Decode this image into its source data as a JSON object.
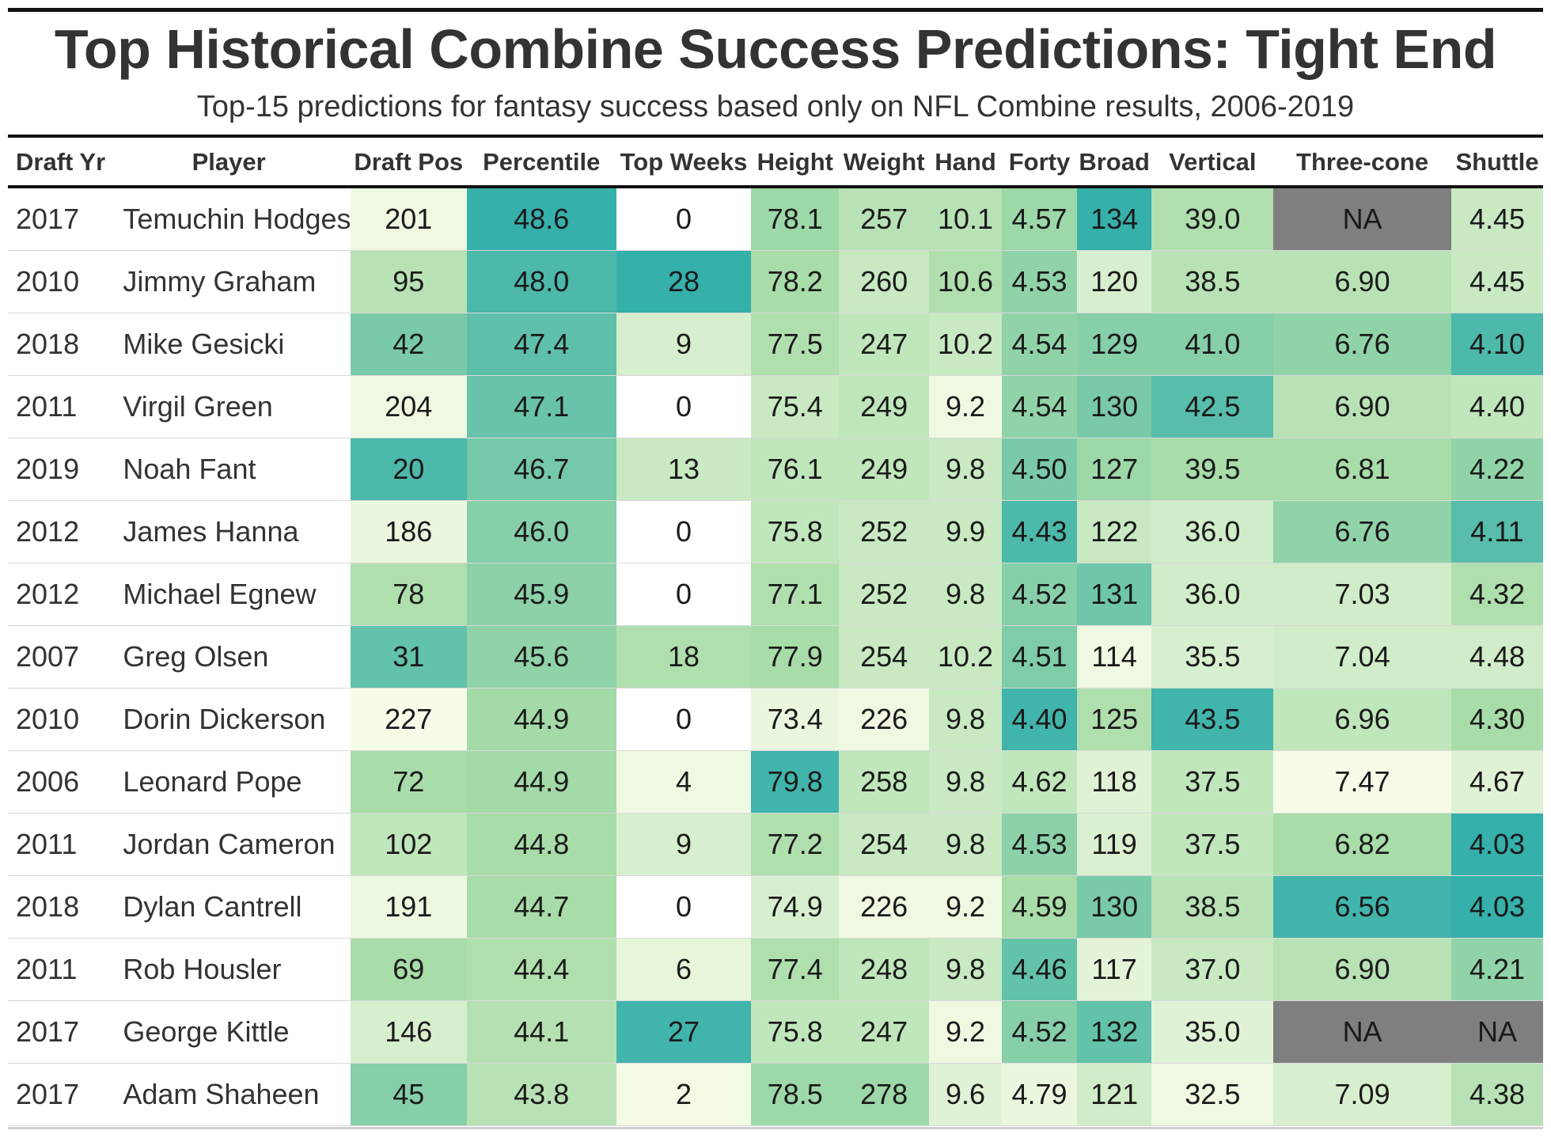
{
  "chart_data": {
    "type": "table",
    "title": "Top Historical Combine Success Predictions: Tight End",
    "subtitle": "Top-15 predictions for fantasy success based only on NFL Combine results, 2006-2019",
    "columns": [
      "Draft Yr",
      "Player",
      "Draft Pos",
      "Percentile",
      "Top Weeks",
      "Height",
      "Weight",
      "Hand",
      "Forty",
      "Broad",
      "Vertical",
      "Three-cone",
      "Shuttle"
    ],
    "color_scale": {
      "low": "#f7fce8",
      "mid": "#a8dca8",
      "high": "#35b0ab",
      "na": "#7f7f7f",
      "none": "#ffffff"
    },
    "rows": [
      {
        "year": "2017",
        "player": "Temuchin Hodges",
        "cells": [
          [
            "201",
            0.05
          ],
          [
            "48.6",
            1.0
          ],
          [
            "0",
            0
          ],
          [
            "78.1",
            0.55
          ],
          [
            "257",
            0.4
          ],
          [
            "10.1",
            0.4
          ],
          [
            "4.57",
            0.55
          ],
          [
            "134",
            1.0
          ],
          [
            "39.0",
            0.45
          ],
          [
            "NA",
            "na"
          ],
          [
            "4.45",
            0.3
          ]
        ]
      },
      {
        "year": "2010",
        "player": "Jimmy Graham",
        "cells": [
          [
            "95",
            0.4
          ],
          [
            "48.0",
            0.9
          ],
          [
            "28",
            1.0
          ],
          [
            "78.2",
            0.5
          ],
          [
            "260",
            0.3
          ],
          [
            "10.6",
            0.45
          ],
          [
            "4.53",
            0.6
          ],
          [
            "120",
            0.2
          ],
          [
            "38.5",
            0.4
          ],
          [
            "6.90",
            0.4
          ],
          [
            "4.45",
            0.3
          ]
        ]
      },
      {
        "year": "2018",
        "player": "Mike Gesicki",
        "cells": [
          [
            "42",
            0.7
          ],
          [
            "47.4",
            0.82
          ],
          [
            "9",
            0.2
          ],
          [
            "77.5",
            0.45
          ],
          [
            "247",
            0.35
          ],
          [
            "10.2",
            0.3
          ],
          [
            "4.54",
            0.6
          ],
          [
            "129",
            0.65
          ],
          [
            "41.0",
            0.65
          ],
          [
            "6.76",
            0.6
          ],
          [
            "4.10",
            0.9
          ]
        ]
      },
      {
        "year": "2011",
        "player": "Virgil Green",
        "cells": [
          [
            "204",
            0.05
          ],
          [
            "47.1",
            0.78
          ],
          [
            "0",
            0
          ],
          [
            "75.4",
            0.3
          ],
          [
            "249",
            0.35
          ],
          [
            "9.2",
            0.05
          ],
          [
            "4.54",
            0.6
          ],
          [
            "130",
            0.7
          ],
          [
            "42.5",
            0.85
          ],
          [
            "6.90",
            0.4
          ],
          [
            "4.40",
            0.35
          ]
        ]
      },
      {
        "year": "2019",
        "player": "Noah Fant",
        "cells": [
          [
            "20",
            0.9
          ],
          [
            "46.7",
            0.72
          ],
          [
            "13",
            0.3
          ],
          [
            "76.1",
            0.35
          ],
          [
            "249",
            0.35
          ],
          [
            "9.8",
            0.3
          ],
          [
            "4.50",
            0.7
          ],
          [
            "127",
            0.55
          ],
          [
            "39.5",
            0.5
          ],
          [
            "6.81",
            0.5
          ],
          [
            "4.22",
            0.6
          ]
        ]
      },
      {
        "year": "2012",
        "player": "James Hanna",
        "cells": [
          [
            "186",
            0.08
          ],
          [
            "46.0",
            0.65
          ],
          [
            "0",
            0
          ],
          [
            "75.8",
            0.35
          ],
          [
            "252",
            0.3
          ],
          [
            "9.9",
            0.3
          ],
          [
            "4.43",
            0.9
          ],
          [
            "122",
            0.3
          ],
          [
            "36.0",
            0.25
          ],
          [
            "6.76",
            0.6
          ],
          [
            "4.11",
            0.85
          ]
        ]
      },
      {
        "year": "2012",
        "player": "Michael Egnew",
        "cells": [
          [
            "78",
            0.45
          ],
          [
            "45.9",
            0.62
          ],
          [
            "0",
            0
          ],
          [
            "77.1",
            0.45
          ],
          [
            "252",
            0.3
          ],
          [
            "9.8",
            0.3
          ],
          [
            "4.52",
            0.65
          ],
          [
            "131",
            0.75
          ],
          [
            "36.0",
            0.25
          ],
          [
            "7.03",
            0.25
          ],
          [
            "4.32",
            0.45
          ]
        ]
      },
      {
        "year": "2007",
        "player": "Greg Olsen",
        "cells": [
          [
            "31",
            0.8
          ],
          [
            "45.6",
            0.6
          ],
          [
            "18",
            0.45
          ],
          [
            "77.9",
            0.5
          ],
          [
            "254",
            0.3
          ],
          [
            "10.2",
            0.3
          ],
          [
            "4.51",
            0.68
          ],
          [
            "114",
            0.05
          ],
          [
            "35.5",
            0.2
          ],
          [
            "7.04",
            0.25
          ],
          [
            "4.48",
            0.25
          ]
        ]
      },
      {
        "year": "2010",
        "player": "Dorin Dickerson",
        "cells": [
          [
            "227",
            0.0
          ],
          [
            "44.9",
            0.52
          ],
          [
            "0",
            0
          ],
          [
            "73.4",
            0.08
          ],
          [
            "226",
            0.05
          ],
          [
            "9.8",
            0.3
          ],
          [
            "4.40",
            0.95
          ],
          [
            "125",
            0.45
          ],
          [
            "43.5",
            0.95
          ],
          [
            "6.96",
            0.35
          ],
          [
            "4.30",
            0.5
          ]
        ]
      },
      {
        "year": "2006",
        "player": "Leonard Pope",
        "cells": [
          [
            "72",
            0.5
          ],
          [
            "44.9",
            0.52
          ],
          [
            "4",
            0.05
          ],
          [
            "79.8",
            0.95
          ],
          [
            "258",
            0.35
          ],
          [
            "9.8",
            0.3
          ],
          [
            "4.62",
            0.35
          ],
          [
            "118",
            0.15
          ],
          [
            "37.5",
            0.35
          ],
          [
            "7.47",
            0.0
          ],
          [
            "4.67",
            0.15
          ]
        ]
      },
      {
        "year": "2011",
        "player": "Jordan Cameron",
        "cells": [
          [
            "102",
            0.35
          ],
          [
            "44.8",
            0.5
          ],
          [
            "9",
            0.2
          ],
          [
            "77.2",
            0.45
          ],
          [
            "254",
            0.3
          ],
          [
            "9.8",
            0.3
          ],
          [
            "4.53",
            0.62
          ],
          [
            "119",
            0.18
          ],
          [
            "37.5",
            0.35
          ],
          [
            "6.82",
            0.5
          ],
          [
            "4.03",
            1.0
          ]
        ]
      },
      {
        "year": "2018",
        "player": "Dylan Cantrell",
        "cells": [
          [
            "191",
            0.07
          ],
          [
            "44.7",
            0.5
          ],
          [
            "0",
            0
          ],
          [
            "74.9",
            0.2
          ],
          [
            "226",
            0.05
          ],
          [
            "9.2",
            0.05
          ],
          [
            "4.59",
            0.5
          ],
          [
            "130",
            0.7
          ],
          [
            "38.5",
            0.4
          ],
          [
            "6.56",
            0.95
          ],
          [
            "4.03",
            1.0
          ]
        ]
      },
      {
        "year": "2011",
        "player": "Rob Housler",
        "cells": [
          [
            "69",
            0.5
          ],
          [
            "44.4",
            0.45
          ],
          [
            "6",
            0.1
          ],
          [
            "77.4",
            0.45
          ],
          [
            "248",
            0.35
          ],
          [
            "9.8",
            0.3
          ],
          [
            "4.46",
            0.8
          ],
          [
            "117",
            0.12
          ],
          [
            "37.0",
            0.3
          ],
          [
            "6.90",
            0.4
          ],
          [
            "4.21",
            0.6
          ]
        ]
      },
      {
        "year": "2017",
        "player": "George Kittle",
        "cells": [
          [
            "146",
            0.2
          ],
          [
            "44.1",
            0.42
          ],
          [
            "27",
            0.95
          ],
          [
            "75.8",
            0.35
          ],
          [
            "247",
            0.35
          ],
          [
            "9.2",
            0.05
          ],
          [
            "4.52",
            0.65
          ],
          [
            "132",
            0.8
          ],
          [
            "35.0",
            0.15
          ],
          [
            "NA",
            "na"
          ],
          [
            "NA",
            "na"
          ]
        ]
      },
      {
        "year": "2017",
        "player": "Adam Shaheen",
        "cells": [
          [
            "45",
            0.65
          ],
          [
            "43.8",
            0.4
          ],
          [
            "2",
            0.02
          ],
          [
            "78.5",
            0.55
          ],
          [
            "278",
            0.55
          ],
          [
            "9.6",
            0.15
          ],
          [
            "4.79",
            0.08
          ],
          [
            "121",
            0.25
          ],
          [
            "32.5",
            0.05
          ],
          [
            "7.09",
            0.2
          ],
          [
            "4.38",
            0.4
          ]
        ]
      }
    ]
  }
}
